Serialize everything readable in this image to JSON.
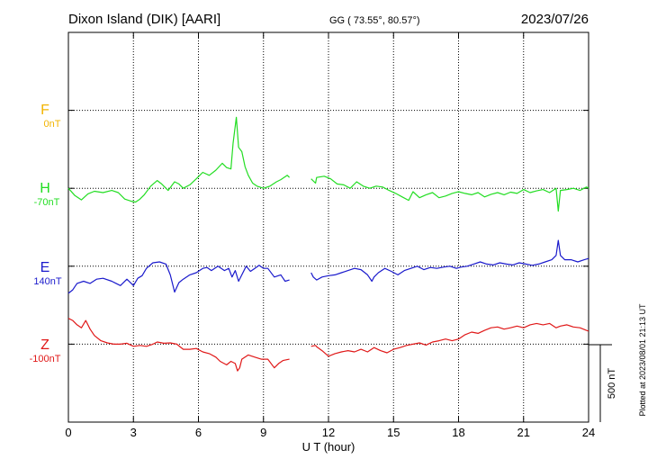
{
  "header": {
    "station": "Dixon Island (DIK)  [AARI]",
    "coords": "GG ( 73.55°,  80.57°)",
    "date": "2023/07/26"
  },
  "footer": {
    "plotted": "Plotted at 2023/08/01 21:13 UT"
  },
  "scale": {
    "label": "500 nT",
    "nT": 500
  },
  "chart_data": {
    "type": "line",
    "xlabel": "U T (hour)",
    "xlim": [
      0,
      24
    ],
    "xticks": [
      0,
      3,
      6,
      9,
      12,
      15,
      18,
      21,
      24
    ],
    "xtick_labels": [
      "0",
      "3",
      "6",
      "9",
      "12",
      "15",
      "18",
      "21",
      "24"
    ],
    "grid": true,
    "nT_per_trace_row": 181,
    "series": [
      {
        "name": "F",
        "baseline_label": "0nT",
        "color": "#f2b400",
        "row": 1,
        "points": []
      },
      {
        "name": "H",
        "baseline_label": "-70nT",
        "color": "#22dd22",
        "row": 2,
        "points": [
          [
            0,
            0
          ],
          [
            0.3,
            -17
          ],
          [
            0.6,
            -27
          ],
          [
            0.9,
            -13
          ],
          [
            1.2,
            -7
          ],
          [
            1.6,
            -10
          ],
          [
            2,
            -5
          ],
          [
            2.3,
            -10
          ],
          [
            2.6,
            -25
          ],
          [
            2.9,
            -30
          ],
          [
            3.1,
            -32
          ],
          [
            3.3,
            -25
          ],
          [
            3.5,
            -15
          ],
          [
            3.8,
            5
          ],
          [
            4.1,
            18
          ],
          [
            4.3,
            10
          ],
          [
            4.6,
            -5
          ],
          [
            4.9,
            15
          ],
          [
            5.1,
            10
          ],
          [
            5.3,
            0
          ],
          [
            5.6,
            8
          ],
          [
            5.9,
            22
          ],
          [
            6.2,
            37
          ],
          [
            6.5,
            30
          ],
          [
            6.8,
            42
          ],
          [
            7.1,
            58
          ],
          [
            7.3,
            48
          ],
          [
            7.5,
            45
          ],
          [
            7.6,
            105
          ],
          [
            7.75,
            165
          ],
          [
            7.85,
            95
          ],
          [
            8.0,
            85
          ],
          [
            8.15,
            50
          ],
          [
            8.3,
            30
          ],
          [
            8.5,
            12
          ],
          [
            8.7,
            5
          ],
          [
            9.0,
            0
          ],
          [
            9.3,
            5
          ],
          [
            9.6,
            15
          ],
          [
            9.8,
            20
          ],
          [
            10.1,
            30
          ],
          [
            10.2,
            25
          ]
        ]
      },
      {
        "name": "H",
        "color": "#22dd22",
        "row": 2,
        "points": [
          [
            11.2,
            22
          ],
          [
            11.4,
            12
          ],
          [
            11.45,
            25
          ],
          [
            11.8,
            28
          ],
          [
            12.1,
            22
          ],
          [
            12.4,
            10
          ],
          [
            12.7,
            8
          ],
          [
            13.0,
            0
          ],
          [
            13.3,
            15
          ],
          [
            13.6,
            5
          ],
          [
            13.9,
            0
          ],
          [
            14.2,
            5
          ],
          [
            14.5,
            3
          ],
          [
            14.8,
            -5
          ],
          [
            15.1,
            -12
          ],
          [
            15.4,
            -20
          ],
          [
            15.7,
            -28
          ],
          [
            15.9,
            -8
          ],
          [
            16.2,
            -22
          ],
          [
            16.5,
            -15
          ],
          [
            16.8,
            -10
          ],
          [
            17.1,
            -22
          ],
          [
            17.4,
            -18
          ],
          [
            17.7,
            -12
          ],
          [
            18.0,
            -8
          ],
          [
            18.3,
            -12
          ],
          [
            18.6,
            -15
          ],
          [
            18.9,
            -10
          ],
          [
            19.2,
            -20
          ],
          [
            19.5,
            -14
          ],
          [
            19.8,
            -10
          ],
          [
            20.1,
            -15
          ],
          [
            20.4,
            -9
          ],
          [
            20.7,
            -12
          ],
          [
            21.0,
            -3
          ],
          [
            21.3,
            -10
          ],
          [
            21.6,
            -6
          ],
          [
            21.9,
            -3
          ],
          [
            22.2,
            -10
          ],
          [
            22.5,
            0
          ],
          [
            22.6,
            -53
          ],
          [
            22.7,
            -5
          ],
          [
            23.0,
            -3
          ],
          [
            23.3,
            0
          ],
          [
            23.6,
            -5
          ],
          [
            23.9,
            3
          ],
          [
            24.0,
            0
          ]
        ]
      },
      {
        "name": "E",
        "baseline_label": "140nT",
        "color": "#1a1acc",
        "row": 3,
        "points": [
          [
            0,
            -63
          ],
          [
            0.2,
            -55
          ],
          [
            0.4,
            -40
          ],
          [
            0.7,
            -35
          ],
          [
            1.0,
            -40
          ],
          [
            1.3,
            -30
          ],
          [
            1.6,
            -28
          ],
          [
            2.0,
            -35
          ],
          [
            2.4,
            -45
          ],
          [
            2.7,
            -30
          ],
          [
            3.0,
            -45
          ],
          [
            3.2,
            -28
          ],
          [
            3.4,
            -22
          ],
          [
            3.6,
            -5
          ],
          [
            3.9,
            8
          ],
          [
            4.2,
            10
          ],
          [
            4.5,
            5
          ],
          [
            4.7,
            -20
          ],
          [
            4.9,
            -60
          ],
          [
            5.1,
            -38
          ],
          [
            5.3,
            -30
          ],
          [
            5.6,
            -20
          ],
          [
            5.9,
            -15
          ],
          [
            6.2,
            -5
          ],
          [
            6.4,
            -3
          ],
          [
            6.6,
            -10
          ],
          [
            6.9,
            0
          ],
          [
            7.2,
            -10
          ],
          [
            7.4,
            -5
          ],
          [
            7.55,
            -25
          ],
          [
            7.7,
            -10
          ],
          [
            7.85,
            -35
          ],
          [
            8.0,
            -20
          ],
          [
            8.2,
            0
          ],
          [
            8.4,
            -12
          ],
          [
            8.6,
            -5
          ],
          [
            8.8,
            2
          ],
          [
            9.0,
            -5
          ],
          [
            9.2,
            -5
          ],
          [
            9.5,
            -25
          ],
          [
            9.8,
            -20
          ],
          [
            10.0,
            -35
          ],
          [
            10.2,
            -32
          ]
        ]
      },
      {
        "name": "E",
        "color": "#1a1acc",
        "row": 3,
        "points": [
          [
            11.2,
            -15
          ],
          [
            11.3,
            -25
          ],
          [
            11.45,
            -32
          ],
          [
            11.7,
            -25
          ],
          [
            12.0,
            -22
          ],
          [
            12.3,
            -20
          ],
          [
            12.6,
            -15
          ],
          [
            12.9,
            -10
          ],
          [
            13.2,
            -5
          ],
          [
            13.5,
            -8
          ],
          [
            13.8,
            -20
          ],
          [
            14.0,
            -35
          ],
          [
            14.1,
            -25
          ],
          [
            14.3,
            -15
          ],
          [
            14.6,
            -5
          ],
          [
            14.9,
            -12
          ],
          [
            15.2,
            -20
          ],
          [
            15.5,
            -10
          ],
          [
            15.8,
            -5
          ],
          [
            16.1,
            0
          ],
          [
            16.4,
            -8
          ],
          [
            16.7,
            -3
          ],
          [
            17.0,
            -5
          ],
          [
            17.3,
            -2
          ],
          [
            17.6,
            0
          ],
          [
            17.9,
            -5
          ],
          [
            18.1,
            -2
          ],
          [
            18.4,
            0
          ],
          [
            18.7,
            5
          ],
          [
            19.0,
            10
          ],
          [
            19.3,
            5
          ],
          [
            19.6,
            3
          ],
          [
            19.9,
            8
          ],
          [
            20.2,
            5
          ],
          [
            20.5,
            3
          ],
          [
            20.8,
            8
          ],
          [
            21.1,
            5
          ],
          [
            21.4,
            2
          ],
          [
            21.7,
            5
          ],
          [
            22.0,
            10
          ],
          [
            22.3,
            15
          ],
          [
            22.5,
            25
          ],
          [
            22.6,
            60
          ],
          [
            22.7,
            25
          ],
          [
            22.9,
            15
          ],
          [
            23.2,
            15
          ],
          [
            23.5,
            10
          ],
          [
            23.8,
            15
          ],
          [
            24.0,
            18
          ]
        ]
      },
      {
        "name": "Z",
        "baseline_label": "-100nT",
        "color": "#e01818",
        "row": 4,
        "points": [
          [
            0,
            60
          ],
          [
            0.2,
            55
          ],
          [
            0.4,
            45
          ],
          [
            0.6,
            38
          ],
          [
            0.8,
            55
          ],
          [
            1.0,
            35
          ],
          [
            1.2,
            20
          ],
          [
            1.5,
            8
          ],
          [
            1.8,
            3
          ],
          [
            2.1,
            0
          ],
          [
            2.4,
            0
          ],
          [
            2.7,
            2
          ],
          [
            3.0,
            -5
          ],
          [
            3.3,
            -3
          ],
          [
            3.6,
            -5
          ],
          [
            3.9,
            0
          ],
          [
            4.1,
            5
          ],
          [
            4.4,
            2
          ],
          [
            4.7,
            3
          ],
          [
            5.0,
            0
          ],
          [
            5.3,
            -12
          ],
          [
            5.6,
            -12
          ],
          [
            5.9,
            -10
          ],
          [
            6.2,
            -18
          ],
          [
            6.5,
            -22
          ],
          [
            6.8,
            -30
          ],
          [
            7.0,
            -40
          ],
          [
            7.3,
            -48
          ],
          [
            7.5,
            -40
          ],
          [
            7.7,
            -45
          ],
          [
            7.8,
            -62
          ],
          [
            7.9,
            -55
          ],
          [
            8.0,
            -35
          ],
          [
            8.3,
            -25
          ],
          [
            8.6,
            -30
          ],
          [
            8.9,
            -35
          ],
          [
            9.2,
            -35
          ],
          [
            9.5,
            -55
          ],
          [
            9.7,
            -45
          ],
          [
            9.9,
            -38
          ],
          [
            10.2,
            -35
          ]
        ]
      },
      {
        "name": "Z",
        "color": "#e01818",
        "row": 4,
        "points": [
          [
            11.2,
            -5
          ],
          [
            11.4,
            -3
          ],
          [
            11.45,
            -6
          ],
          [
            11.7,
            -15
          ],
          [
            12.0,
            -28
          ],
          [
            12.3,
            -22
          ],
          [
            12.6,
            -18
          ],
          [
            12.9,
            -15
          ],
          [
            13.2,
            -18
          ],
          [
            13.5,
            -12
          ],
          [
            13.8,
            -18
          ],
          [
            14.1,
            -8
          ],
          [
            14.4,
            -15
          ],
          [
            14.7,
            -20
          ],
          [
            15.0,
            -12
          ],
          [
            15.3,
            -8
          ],
          [
            15.6,
            -3
          ],
          [
            15.9,
            0
          ],
          [
            16.2,
            3
          ],
          [
            16.5,
            -2
          ],
          [
            16.8,
            5
          ],
          [
            17.1,
            8
          ],
          [
            17.4,
            12
          ],
          [
            17.7,
            8
          ],
          [
            18.0,
            12
          ],
          [
            18.3,
            22
          ],
          [
            18.6,
            28
          ],
          [
            18.9,
            25
          ],
          [
            19.2,
            32
          ],
          [
            19.5,
            38
          ],
          [
            19.8,
            40
          ],
          [
            20.1,
            35
          ],
          [
            20.4,
            38
          ],
          [
            20.7,
            42
          ],
          [
            21.0,
            38
          ],
          [
            21.3,
            45
          ],
          [
            21.6,
            48
          ],
          [
            21.9,
            45
          ],
          [
            22.2,
            48
          ],
          [
            22.5,
            38
          ],
          [
            22.7,
            42
          ],
          [
            23.0,
            45
          ],
          [
            23.3,
            40
          ],
          [
            23.6,
            38
          ],
          [
            23.9,
            32
          ],
          [
            24.0,
            30
          ]
        ]
      }
    ]
  }
}
